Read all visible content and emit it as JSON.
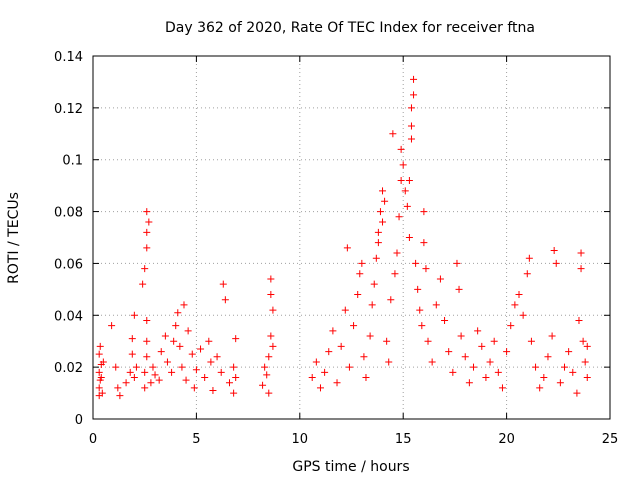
{
  "chart_data": {
    "type": "scatter",
    "title": "Day 362 of 2020, Rate Of TEC Index for receiver ftna",
    "xlabel": "GPS time / hours",
    "ylabel": "ROTI / TECUs",
    "xlim": [
      0,
      25
    ],
    "ylim": [
      0,
      0.14
    ],
    "xticks": [
      0,
      5,
      10,
      15,
      20,
      25
    ],
    "yticks": [
      0,
      0.02,
      0.04,
      0.06,
      0.08,
      0.1,
      0.12,
      0.14
    ],
    "xtick_labels": [
      "0",
      "5",
      "10",
      "15",
      "20",
      "25"
    ],
    "ytick_labels": [
      "0",
      "0.02",
      "0.04",
      "0.06",
      "0.08",
      "0.1",
      "0.12",
      "0.14"
    ],
    "grid": true,
    "marker": "+",
    "color": "#ff0000",
    "series": [
      {
        "points": [
          [
            0.3,
            0.012
          ],
          [
            0.3,
            0.018
          ],
          [
            0.3,
            0.025
          ],
          [
            0.35,
            0.015
          ],
          [
            0.4,
            0.021
          ],
          [
            0.35,
            0.028
          ],
          [
            0.45,
            0.01
          ],
          [
            0.4,
            0.016
          ],
          [
            0.5,
            0.022
          ],
          [
            0.3,
            0.009
          ],
          [
            0.9,
            0.036
          ],
          [
            1.1,
            0.02
          ],
          [
            1.2,
            0.012
          ],
          [
            1.3,
            0.009
          ],
          [
            1.6,
            0.014
          ],
          [
            1.8,
            0.018
          ],
          [
            1.9,
            0.025
          ],
          [
            1.9,
            0.031
          ],
          [
            2.0,
            0.04
          ],
          [
            2.0,
            0.016
          ],
          [
            2.1,
            0.02
          ],
          [
            2.5,
            0.012
          ],
          [
            2.5,
            0.018
          ],
          [
            2.6,
            0.024
          ],
          [
            2.6,
            0.03
          ],
          [
            2.6,
            0.038
          ],
          [
            2.4,
            0.052
          ],
          [
            2.5,
            0.058
          ],
          [
            2.6,
            0.066
          ],
          [
            2.6,
            0.072
          ],
          [
            2.6,
            0.08
          ],
          [
            2.7,
            0.076
          ],
          [
            2.8,
            0.014
          ],
          [
            2.9,
            0.02
          ],
          [
            3.0,
            0.017
          ],
          [
            3.2,
            0.015
          ],
          [
            3.3,
            0.026
          ],
          [
            3.5,
            0.032
          ],
          [
            3.6,
            0.022
          ],
          [
            3.8,
            0.018
          ],
          [
            3.9,
            0.03
          ],
          [
            4.0,
            0.036
          ],
          [
            4.1,
            0.041
          ],
          [
            4.2,
            0.028
          ],
          [
            4.3,
            0.02
          ],
          [
            4.4,
            0.044
          ],
          [
            4.5,
            0.015
          ],
          [
            4.6,
            0.034
          ],
          [
            4.8,
            0.025
          ],
          [
            4.9,
            0.012
          ],
          [
            5.0,
            0.019
          ],
          [
            5.2,
            0.027
          ],
          [
            5.4,
            0.016
          ],
          [
            5.6,
            0.03
          ],
          [
            5.7,
            0.022
          ],
          [
            5.8,
            0.011
          ],
          [
            6.0,
            0.024
          ],
          [
            6.2,
            0.018
          ],
          [
            6.3,
            0.052
          ],
          [
            6.4,
            0.046
          ],
          [
            6.6,
            0.014
          ],
          [
            6.8,
            0.02
          ],
          [
            6.9,
            0.031
          ],
          [
            6.8,
            0.01
          ],
          [
            6.9,
            0.016
          ],
          [
            8.2,
            0.013
          ],
          [
            8.3,
            0.02
          ],
          [
            8.4,
            0.017
          ],
          [
            8.5,
            0.024
          ],
          [
            8.6,
            0.032
          ],
          [
            8.7,
            0.042
          ],
          [
            8.6,
            0.048
          ],
          [
            8.6,
            0.054
          ],
          [
            8.7,
            0.028
          ],
          [
            8.5,
            0.01
          ],
          [
            10.6,
            0.016
          ],
          [
            10.8,
            0.022
          ],
          [
            11.0,
            0.012
          ],
          [
            11.2,
            0.018
          ],
          [
            11.4,
            0.026
          ],
          [
            11.6,
            0.034
          ],
          [
            11.8,
            0.014
          ],
          [
            12.0,
            0.028
          ],
          [
            12.2,
            0.042
          ],
          [
            12.3,
            0.066
          ],
          [
            12.4,
            0.02
          ],
          [
            12.6,
            0.036
          ],
          [
            12.8,
            0.048
          ],
          [
            12.9,
            0.056
          ],
          [
            13.0,
            0.06
          ],
          [
            13.1,
            0.024
          ],
          [
            13.2,
            0.016
          ],
          [
            13.4,
            0.032
          ],
          [
            13.5,
            0.044
          ],
          [
            13.6,
            0.052
          ],
          [
            13.7,
            0.062
          ],
          [
            13.8,
            0.072
          ],
          [
            13.9,
            0.08
          ],
          [
            14.0,
            0.088
          ],
          [
            13.8,
            0.068
          ],
          [
            14.0,
            0.076
          ],
          [
            14.1,
            0.084
          ],
          [
            14.2,
            0.03
          ],
          [
            14.3,
            0.022
          ],
          [
            14.4,
            0.046
          ],
          [
            14.5,
            0.11
          ],
          [
            14.6,
            0.056
          ],
          [
            14.7,
            0.064
          ],
          [
            14.8,
            0.078
          ],
          [
            14.9,
            0.092
          ],
          [
            14.9,
            0.104
          ],
          [
            15.0,
            0.098
          ],
          [
            15.1,
            0.088
          ],
          [
            15.2,
            0.082
          ],
          [
            15.3,
            0.07
          ],
          [
            15.4,
            0.113
          ],
          [
            15.4,
            0.12
          ],
          [
            15.5,
            0.125
          ],
          [
            15.5,
            0.131
          ],
          [
            15.4,
            0.108
          ],
          [
            15.3,
            0.092
          ],
          [
            15.6,
            0.06
          ],
          [
            15.7,
            0.05
          ],
          [
            15.8,
            0.042
          ],
          [
            15.9,
            0.036
          ],
          [
            16.0,
            0.08
          ],
          [
            16.0,
            0.068
          ],
          [
            16.1,
            0.058
          ],
          [
            16.2,
            0.03
          ],
          [
            16.4,
            0.022
          ],
          [
            16.6,
            0.044
          ],
          [
            16.8,
            0.054
          ],
          [
            17.0,
            0.038
          ],
          [
            17.2,
            0.026
          ],
          [
            17.4,
            0.018
          ],
          [
            17.6,
            0.06
          ],
          [
            17.7,
            0.05
          ],
          [
            17.8,
            0.032
          ],
          [
            18.0,
            0.024
          ],
          [
            18.2,
            0.014
          ],
          [
            18.4,
            0.02
          ],
          [
            18.6,
            0.034
          ],
          [
            18.8,
            0.028
          ],
          [
            19.0,
            0.016
          ],
          [
            19.2,
            0.022
          ],
          [
            19.4,
            0.03
          ],
          [
            19.6,
            0.018
          ],
          [
            19.8,
            0.012
          ],
          [
            20.0,
            0.026
          ],
          [
            20.2,
            0.036
          ],
          [
            20.4,
            0.044
          ],
          [
            20.6,
            0.048
          ],
          [
            20.8,
            0.04
          ],
          [
            21.0,
            0.056
          ],
          [
            21.1,
            0.062
          ],
          [
            21.2,
            0.03
          ],
          [
            21.4,
            0.02
          ],
          [
            21.6,
            0.012
          ],
          [
            21.8,
            0.016
          ],
          [
            22.0,
            0.024
          ],
          [
            22.2,
            0.032
          ],
          [
            22.3,
            0.065
          ],
          [
            22.4,
            0.06
          ],
          [
            22.6,
            0.014
          ],
          [
            22.8,
            0.02
          ],
          [
            23.0,
            0.026
          ],
          [
            23.2,
            0.018
          ],
          [
            23.4,
            0.01
          ],
          [
            23.5,
            0.038
          ],
          [
            23.6,
            0.064
          ],
          [
            23.6,
            0.058
          ],
          [
            23.7,
            0.03
          ],
          [
            23.8,
            0.022
          ],
          [
            23.9,
            0.016
          ],
          [
            23.9,
            0.028
          ]
        ]
      }
    ]
  }
}
